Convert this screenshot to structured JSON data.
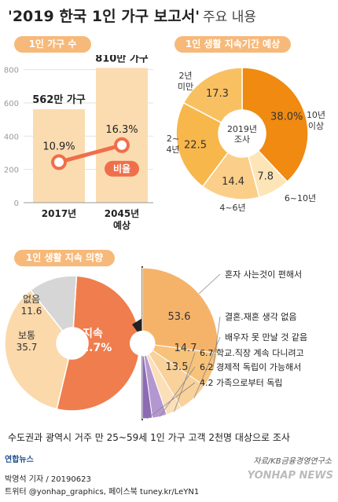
{
  "title": {
    "main": "'2019 한국 1인 가구 보고서'",
    "sub": "주요 내용"
  },
  "chart_data": [
    {
      "type": "bar",
      "panel_label": "1인 가구 수",
      "categories": [
        "2017년",
        "2045년\n예상"
      ],
      "values": [
        562,
        810
      ],
      "value_labels": [
        "562만 가구",
        "810만 가구"
      ],
      "yticks": [
        0,
        200,
        400,
        600,
        800
      ],
      "ylim": [
        0,
        850
      ],
      "line_series": {
        "name": "비율",
        "values": [
          10.9,
          16.3
        ],
        "labels": [
          "10.9%",
          "16.3%"
        ]
      },
      "colors": {
        "bar": "#fbdcb1",
        "line": "#ef6f4a"
      }
    },
    {
      "type": "pie",
      "panel_label": "1인 생활 지속기간 예상",
      "center_label": "2019년\n조사",
      "slices": [
        {
          "label": "10년\n이상",
          "value": 38.0,
          "display": "38.0%",
          "color": "#f08a10"
        },
        {
          "label": "6~10년",
          "value": 7.8,
          "display": "7.8",
          "color": "#fde5b8"
        },
        {
          "label": "4~6년",
          "value": 14.4,
          "display": "14.4",
          "color": "#fbcf8a"
        },
        {
          "label": "2~\n4년",
          "value": 22.5,
          "display": "22.5",
          "color": "#f7b74b"
        },
        {
          "label": "2년\n미만",
          "value": 17.3,
          "display": "17.3",
          "color": "#f9c062"
        }
      ]
    },
    {
      "type": "pie",
      "panel_label": "1인 생활 지속 의향",
      "slices": [
        {
          "label": "지속",
          "value": 52.7,
          "display": "52.7%",
          "color": "#ef7d4e"
        },
        {
          "label": "보통",
          "value": 35.7,
          "display": "35.7",
          "color": "#fbd9ab"
        },
        {
          "label": "없음",
          "value": 11.6,
          "display": "11.6",
          "color": "#d6d6d6"
        }
      ],
      "breakdown": [
        {
          "label": "혼자 사는것이 편해서",
          "value": 53.6,
          "display": "53.6",
          "color": "#f5b36a"
        },
        {
          "label": "결혼.재혼 생각 없음",
          "value": 14.7,
          "display": "14.7",
          "color": "#f7c27a"
        },
        {
          "label": "배우자 못 만날 것 같음",
          "value": 13.5,
          "display": "13.5",
          "color": "#f9d19a"
        },
        {
          "label": "6.7 학교.직장 계속 다니려고",
          "value": 6.7,
          "display": "",
          "color": "#fbdfb8"
        },
        {
          "label": "6.2 경제적 독립이 가능해서",
          "value": 6.2,
          "display": "",
          "color": "#b497d0"
        },
        {
          "label": "4.2 가족으로부터 독립",
          "value": 4.2,
          "display": "",
          "color": "#8d6bb3"
        }
      ]
    }
  ],
  "footer": {
    "note": "수도권과 광역시 거주 만 25~59세 1인 가구 고객 2천명 대상으로 조사",
    "source": "자료/KB금융경영연구소",
    "logo": "연합뉴스",
    "credit1": "박영석 기자 / 20190623",
    "credit2": "트위터 @yonhap_graphics, 페이스북 tuney.kr/LeYN1",
    "watermark": "YONHAP NEWS"
  }
}
